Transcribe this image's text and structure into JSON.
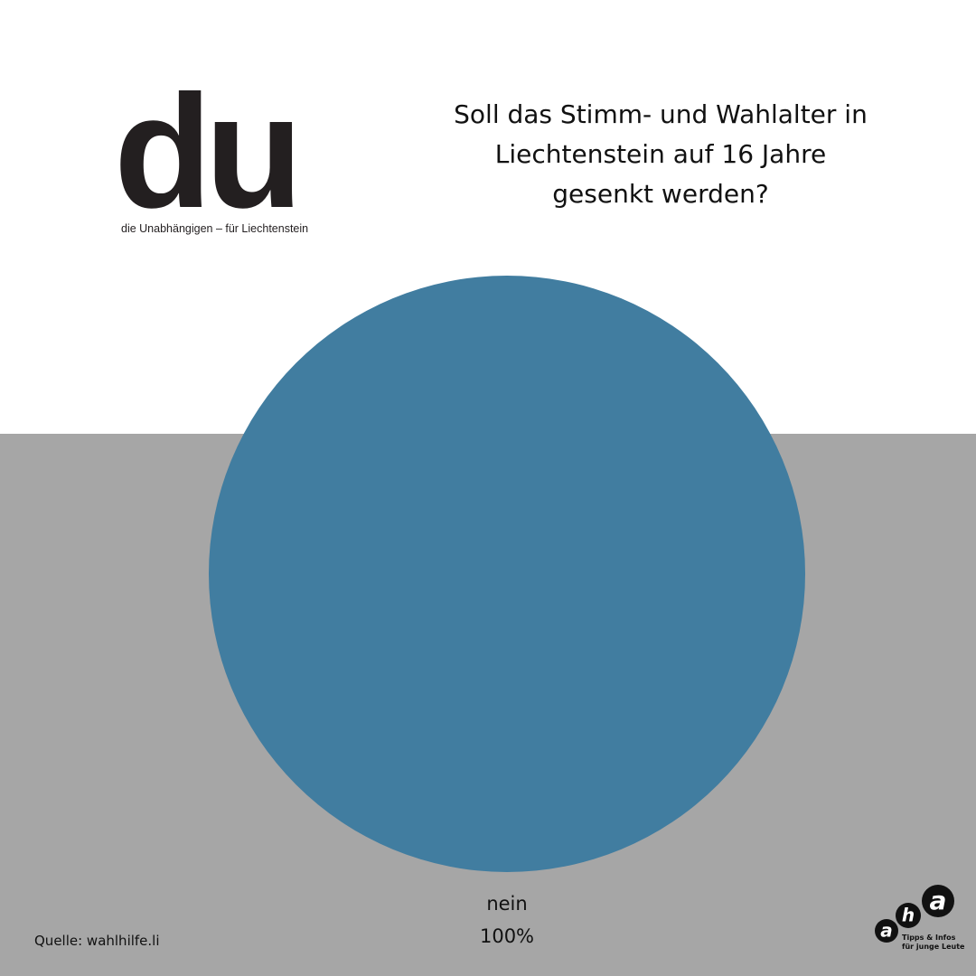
{
  "chart_data": {
    "type": "pie",
    "title": "Soll das Stimm- und Wahlalter in\nLiechtenstein auf 16 Jahre\ngesenkt werden?",
    "categories": [
      "nein"
    ],
    "values": [
      100
    ],
    "value_labels": [
      "100%"
    ],
    "colors": [
      "#417da0"
    ]
  },
  "logo": {
    "mark": "du",
    "tagline": "die Unabhängigen – für Liechtenstein"
  },
  "source": "Quelle: wahlhilfe.li",
  "badge": {
    "letters": [
      "a",
      "h",
      "a"
    ],
    "tagline": "Tipps & Infos\nfür junge Leute"
  }
}
